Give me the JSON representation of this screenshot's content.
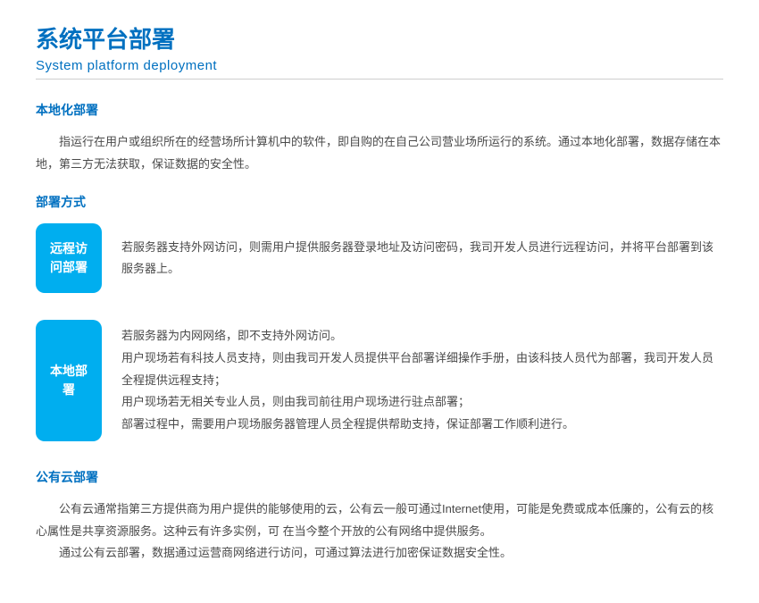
{
  "colors": {
    "primary_blue": "#0070c0",
    "cyan_tag": "#00aeef",
    "text": "#4a4a4a",
    "divider": "#cfcfcf",
    "background": "#ffffff"
  },
  "header": {
    "title_cn": "系统平台部署",
    "title_en": "System platform deployment"
  },
  "section1": {
    "heading": "本地化部署",
    "paragraph": "指运行在用户或组织所在的经营场所计算机中的软件，即自购的在自己公司营业场所运行的系统。通过本地化部署，数据存储在本地，第三方无法获取，保证数据的安全性。"
  },
  "section2": {
    "heading": "部署方式",
    "methods": [
      {
        "tag": "远程访问部署",
        "desc": "若服务器支持外网访问，则需用户提供服务器登录地址及访问密码，我司开发人员进行远程访问，并将平台部署到该服务器上。"
      },
      {
        "tag": "本地部署",
        "lines": [
          "若服务器为内网网络，即不支持外网访问。",
          "用户现场若有科技人员支持，则由我司开发人员提供平台部署详细操作手册，由该科技人员代为部署，我司开发人员全程提供远程支持；",
          "用户现场若无相关专业人员，则由我司前往用户现场进行驻点部署；",
          "部署过程中，需要用户现场服务器管理人员全程提供帮助支持，保证部署工作顺利进行。"
        ]
      }
    ]
  },
  "section3": {
    "heading": "公有云部署",
    "p1": "公有云通常指第三方提供商为用户提供的能够使用的云，公有云一般可通过Internet使用，可能是免费或成本低廉的，公有云的核心属性是共享资源服务。这种云有许多实例，可 在当今整个开放的公有网络中提供服务。",
    "p2": "通过公有云部署，数据通过运营商网络进行访问，可通过算法进行加密保证数据安全性。"
  }
}
